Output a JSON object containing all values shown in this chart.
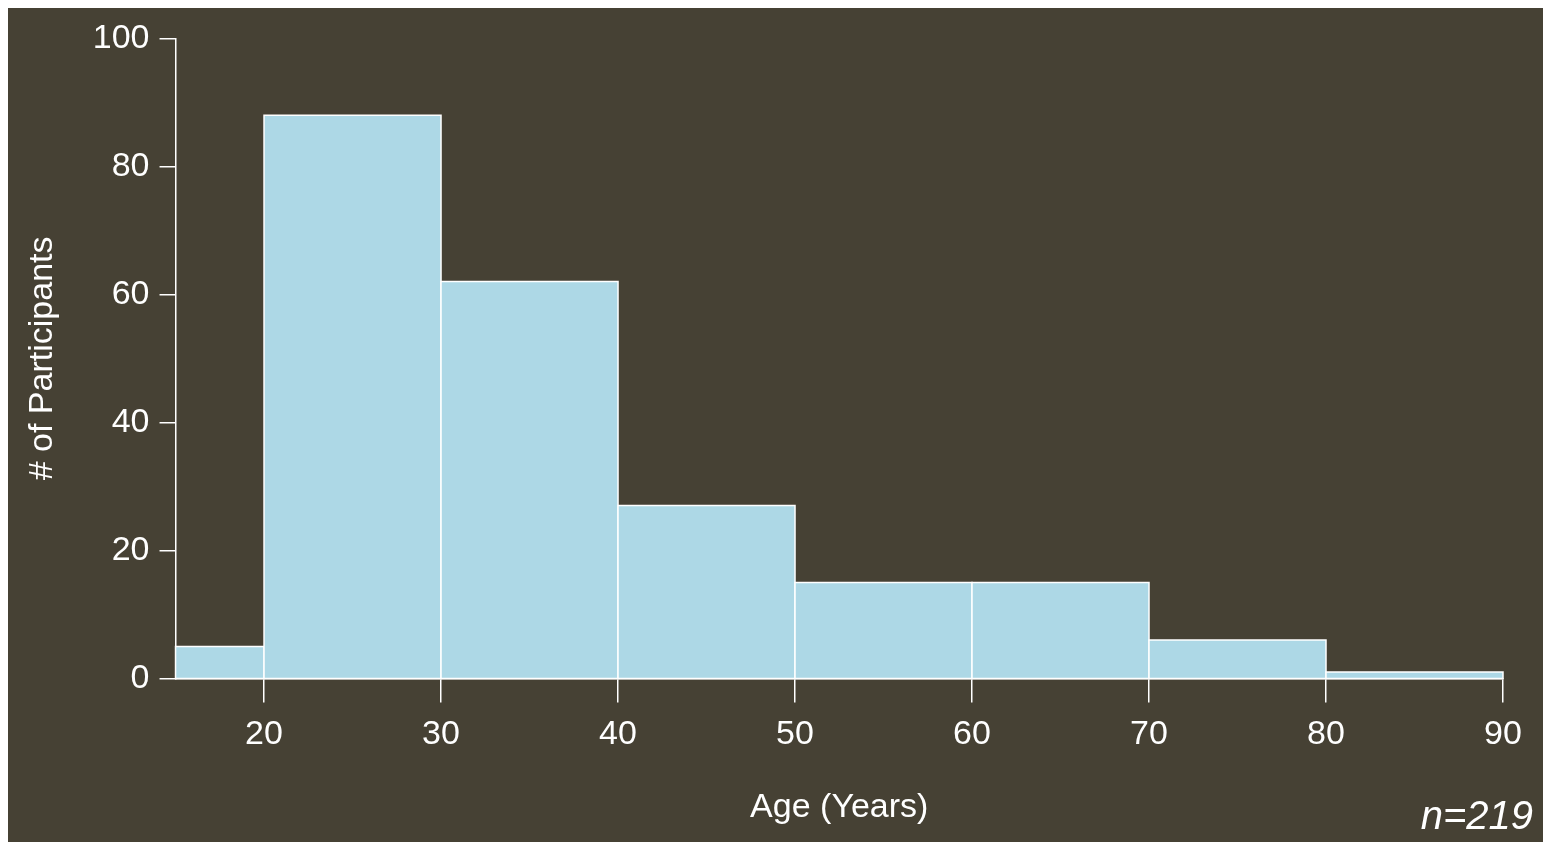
{
  "chart_data": {
    "type": "histogram",
    "xlabel": "Age (Years)",
    "ylabel": "# of Participants",
    "bins": [
      15,
      20,
      30,
      40,
      50,
      60,
      70,
      80,
      90
    ],
    "values": [
      5,
      88,
      62,
      27,
      15,
      15,
      6,
      1
    ],
    "color": "#add8e6",
    "xlim": [
      15,
      90
    ],
    "xticks": [
      20,
      30,
      40,
      50,
      60,
      70,
      80,
      90
    ],
    "ylim": [
      0,
      100
    ],
    "yticks": [
      0,
      20,
      40,
      60,
      80,
      100
    ],
    "grid": false,
    "annotations": [
      "n=219"
    ]
  }
}
